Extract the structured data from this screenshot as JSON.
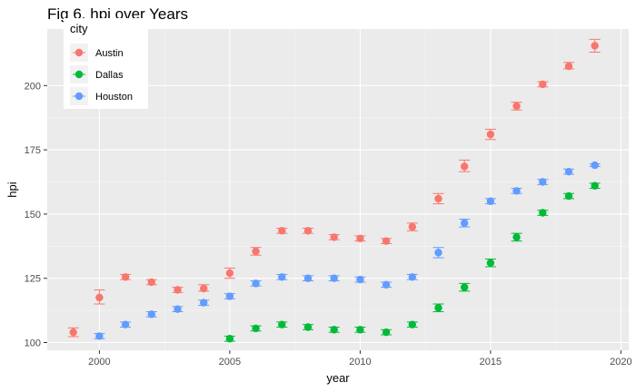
{
  "chart_data": {
    "type": "scatter",
    "title": "Fig 6. hpi over Years",
    "xlabel": "year",
    "ylabel": "hpi",
    "xlim": [
      1998,
      2020.3
    ],
    "ylim": [
      97,
      222
    ],
    "x_ticks": [
      2000,
      2005,
      2010,
      2015,
      2020
    ],
    "y_ticks": [
      100,
      125,
      150,
      175,
      200
    ],
    "grid": true,
    "error_bars": true,
    "legend": {
      "title": "city",
      "position": "top-left"
    },
    "series": [
      {
        "name": "Austin",
        "color": "#F8766D",
        "points": [
          {
            "x": 1999,
            "y": 104.0,
            "lo": 102.3,
            "hi": 105.7
          },
          {
            "x": 2000,
            "y": 117.5,
            "lo": 115.0,
            "hi": 120.5
          },
          {
            "x": 2001,
            "y": 125.5,
            "lo": 124.5,
            "hi": 126.5
          },
          {
            "x": 2002,
            "y": 123.5,
            "lo": 122.5,
            "hi": 124.5
          },
          {
            "x": 2003,
            "y": 120.5,
            "lo": 119.5,
            "hi": 121.5
          },
          {
            "x": 2004,
            "y": 121.0,
            "lo": 120.0,
            "hi": 122.5
          },
          {
            "x": 2005,
            "y": 127.0,
            "lo": 125.0,
            "hi": 129.0
          },
          {
            "x": 2006,
            "y": 135.5,
            "lo": 134.0,
            "hi": 137.0
          },
          {
            "x": 2007,
            "y": 143.5,
            "lo": 142.5,
            "hi": 144.5
          },
          {
            "x": 2008,
            "y": 143.5,
            "lo": 142.5,
            "hi": 144.5
          },
          {
            "x": 2009,
            "y": 141.0,
            "lo": 140.0,
            "hi": 142.0
          },
          {
            "x": 2010,
            "y": 140.5,
            "lo": 139.5,
            "hi": 141.5
          },
          {
            "x": 2011,
            "y": 139.5,
            "lo": 138.5,
            "hi": 140.5
          },
          {
            "x": 2012,
            "y": 145.0,
            "lo": 143.5,
            "hi": 146.5
          },
          {
            "x": 2013,
            "y": 156.0,
            "lo": 154.0,
            "hi": 158.0
          },
          {
            "x": 2014,
            "y": 168.5,
            "lo": 166.5,
            "hi": 171.0
          },
          {
            "x": 2015,
            "y": 181.0,
            "lo": 179.0,
            "hi": 183.0
          },
          {
            "x": 2016,
            "y": 192.0,
            "lo": 190.5,
            "hi": 193.5
          },
          {
            "x": 2017,
            "y": 200.5,
            "lo": 199.5,
            "hi": 201.5
          },
          {
            "x": 2018,
            "y": 207.5,
            "lo": 206.5,
            "hi": 209.0
          },
          {
            "x": 2019,
            "y": 215.5,
            "lo": 213.0,
            "hi": 218.0
          }
        ]
      },
      {
        "name": "Dallas",
        "color": "#00BA38",
        "points": [
          {
            "x": 2005,
            "y": 101.5,
            "lo": 100.5,
            "hi": 102.5
          },
          {
            "x": 2006,
            "y": 105.5,
            "lo": 104.5,
            "hi": 106.5
          },
          {
            "x": 2007,
            "y": 107.0,
            "lo": 106.0,
            "hi": 108.0
          },
          {
            "x": 2008,
            "y": 106.0,
            "lo": 105.0,
            "hi": 107.0
          },
          {
            "x": 2009,
            "y": 105.0,
            "lo": 104.0,
            "hi": 106.0
          },
          {
            "x": 2010,
            "y": 105.0,
            "lo": 104.0,
            "hi": 106.0
          },
          {
            "x": 2011,
            "y": 104.0,
            "lo": 103.0,
            "hi": 105.0
          },
          {
            "x": 2012,
            "y": 107.0,
            "lo": 106.0,
            "hi": 108.0
          },
          {
            "x": 2013,
            "y": 113.5,
            "lo": 112.0,
            "hi": 115.0
          },
          {
            "x": 2014,
            "y": 121.5,
            "lo": 120.0,
            "hi": 123.0
          },
          {
            "x": 2015,
            "y": 131.0,
            "lo": 129.5,
            "hi": 132.5
          },
          {
            "x": 2016,
            "y": 141.0,
            "lo": 139.5,
            "hi": 142.5
          },
          {
            "x": 2017,
            "y": 150.5,
            "lo": 149.5,
            "hi": 151.5
          },
          {
            "x": 2018,
            "y": 157.0,
            "lo": 156.0,
            "hi": 158.0
          },
          {
            "x": 2019,
            "y": 161.0,
            "lo": 160.0,
            "hi": 162.0
          }
        ]
      },
      {
        "name": "Houston",
        "color": "#619CFF",
        "points": [
          {
            "x": 2000,
            "y": 102.5,
            "lo": 101.5,
            "hi": 103.5
          },
          {
            "x": 2001,
            "y": 107.0,
            "lo": 106.0,
            "hi": 108.0
          },
          {
            "x": 2002,
            "y": 111.0,
            "lo": 110.0,
            "hi": 112.0
          },
          {
            "x": 2003,
            "y": 113.0,
            "lo": 112.0,
            "hi": 114.0
          },
          {
            "x": 2004,
            "y": 115.5,
            "lo": 114.5,
            "hi": 116.5
          },
          {
            "x": 2005,
            "y": 118.0,
            "lo": 117.0,
            "hi": 119.0
          },
          {
            "x": 2006,
            "y": 123.0,
            "lo": 122.0,
            "hi": 124.0
          },
          {
            "x": 2007,
            "y": 125.5,
            "lo": 124.5,
            "hi": 126.5
          },
          {
            "x": 2008,
            "y": 125.0,
            "lo": 124.0,
            "hi": 126.0
          },
          {
            "x": 2009,
            "y": 125.0,
            "lo": 124.0,
            "hi": 126.0
          },
          {
            "x": 2010,
            "y": 124.5,
            "lo": 123.5,
            "hi": 125.5
          },
          {
            "x": 2011,
            "y": 122.5,
            "lo": 121.5,
            "hi": 123.5
          },
          {
            "x": 2012,
            "y": 125.5,
            "lo": 124.5,
            "hi": 126.5
          },
          {
            "x": 2013,
            "y": 135.0,
            "lo": 133.0,
            "hi": 137.0
          },
          {
            "x": 2014,
            "y": 146.5,
            "lo": 145.0,
            "hi": 148.0
          },
          {
            "x": 2015,
            "y": 155.0,
            "lo": 154.0,
            "hi": 156.0
          },
          {
            "x": 2016,
            "y": 159.0,
            "lo": 158.0,
            "hi": 160.0
          },
          {
            "x": 2017,
            "y": 162.5,
            "lo": 161.5,
            "hi": 163.5
          },
          {
            "x": 2018,
            "y": 166.5,
            "lo": 165.5,
            "hi": 167.5
          },
          {
            "x": 2019,
            "y": 169.0,
            "lo": 168.5,
            "hi": 169.5
          }
        ]
      }
    ]
  }
}
